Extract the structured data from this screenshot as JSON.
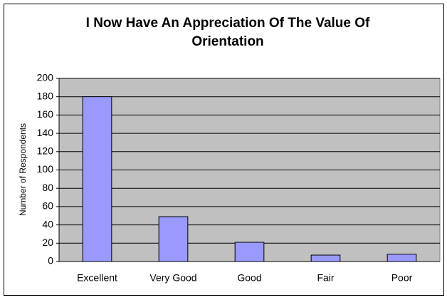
{
  "chart_data": {
    "type": "bar",
    "title": "I Now Have An Appreciation Of The Value Of Orientation",
    "y_label": "Number of Respondents",
    "categories": [
      "Excellent",
      "Very Good",
      "Good",
      "Fair",
      "Poor"
    ],
    "values": [
      180,
      49,
      21,
      7,
      8
    ],
    "color": "#9999ff",
    "ylim": [
      0,
      200
    ],
    "yticks": [
      0,
      20,
      40,
      60,
      80,
      100,
      120,
      140,
      160,
      180,
      200
    ],
    "grid": true
  }
}
